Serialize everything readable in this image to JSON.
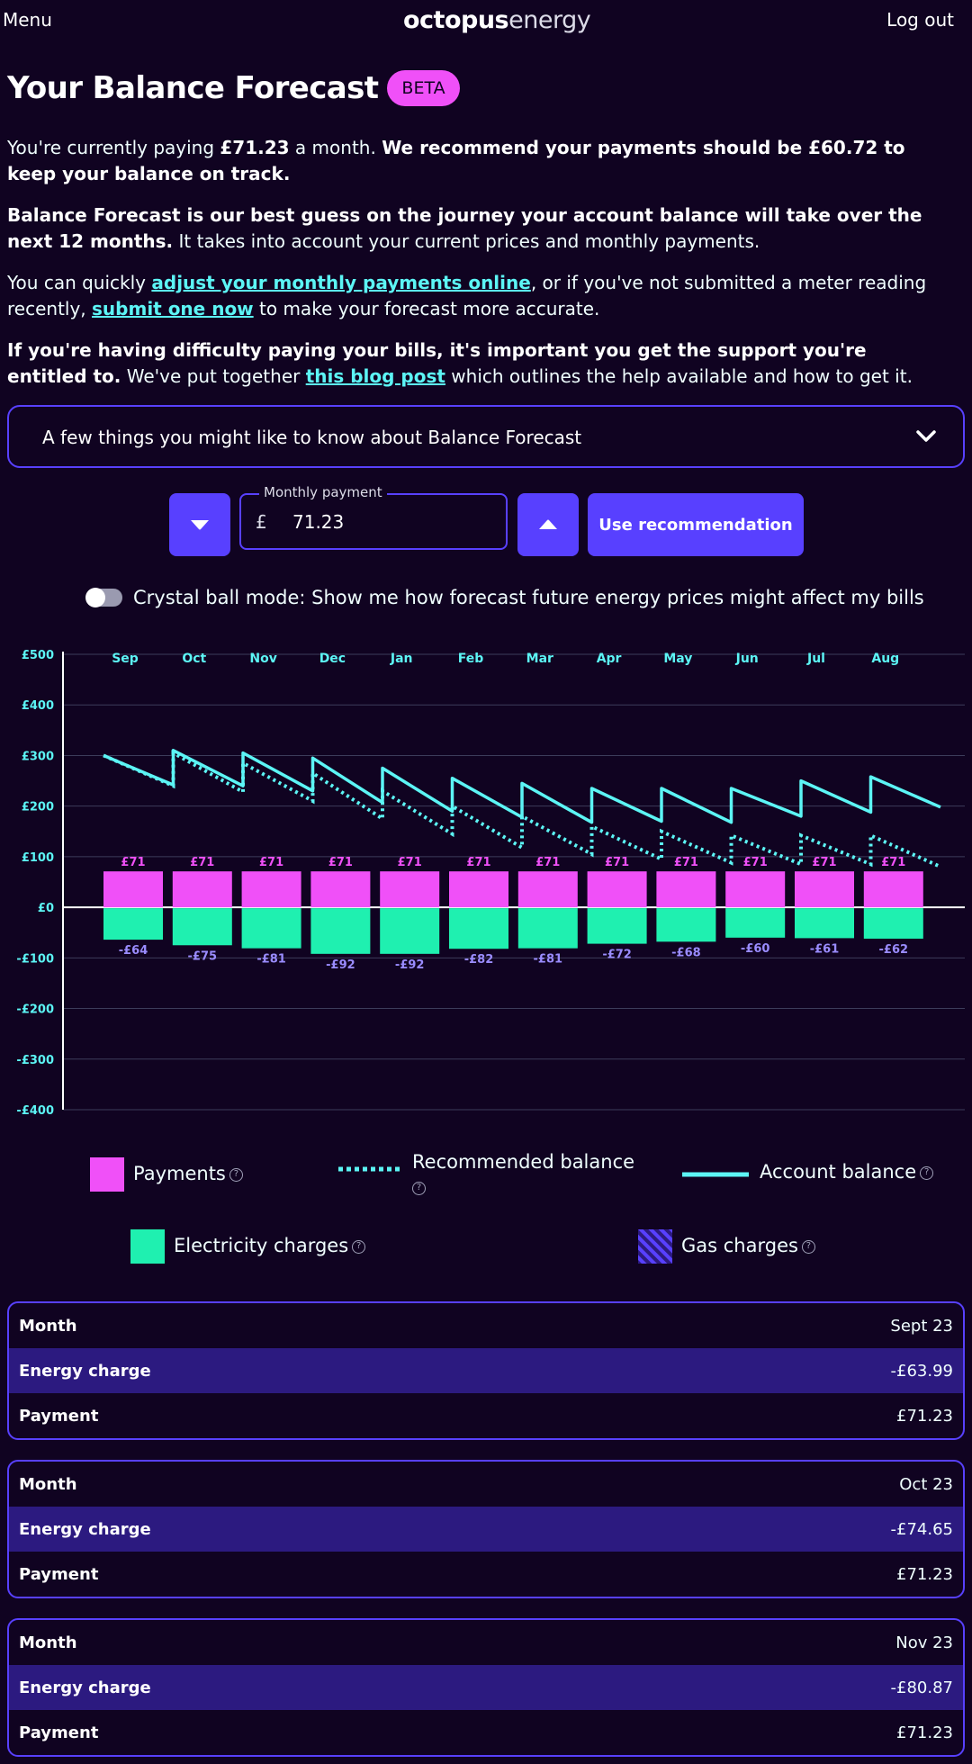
{
  "header": {
    "menu": "Menu",
    "logo_bold": "octopus",
    "logo_light": "energy",
    "logout": "Log out"
  },
  "title": "Your Balance Forecast",
  "badge": "BETA",
  "intro": {
    "p1_a": "You're currently paying ",
    "p1_amount": "£71.23",
    "p1_b": " a month. ",
    "p1_strong": "We recommend your payments should be £60.72 to keep your balance on track.",
    "p2_strong": "Balance Forecast is our best guess on the journey your account balance will take over the next 12 months.",
    "p2_rest": " It takes into account your current prices and monthly payments.",
    "p3_a": "You can quickly ",
    "p3_link1": "adjust your monthly payments online",
    "p3_b": ", or if you've not submitted a meter reading recently, ",
    "p3_link2": "submit one now",
    "p3_c": " to make your forecast more accurate.",
    "p4_strong": "If you're having difficulty paying your bills, it's important you get the support you're entitled to.",
    "p4_a": " We've put together ",
    "p4_link": "this blog post",
    "p4_b": " which outlines the help available and how to get it."
  },
  "accordion": {
    "title": "A few things you might like to know about Balance Forecast",
    "icon": "chevron-down-icon"
  },
  "payment": {
    "label": "Monthly payment",
    "currency": "£",
    "value": "71.23",
    "use_recommendation": "Use recommendation"
  },
  "crystal_ball": {
    "label": "Crystal ball mode: Show me how forecast future energy prices might affect my bills",
    "enabled": false
  },
  "colors": {
    "payments": "#f050f8",
    "electricity": "#1ff0b0",
    "gas": "#5840ff",
    "balance": "#5cf5f5",
    "background": "#100321"
  },
  "chart_data": {
    "type": "bar",
    "categories": [
      "Sep",
      "Oct",
      "Nov",
      "Dec",
      "Jan",
      "Feb",
      "Mar",
      "Apr",
      "May",
      "Jun",
      "Jul",
      "Aug"
    ],
    "ylim": [
      -400,
      500
    ],
    "yticks": [
      500,
      400,
      300,
      200,
      100,
      0,
      -100,
      -200,
      -300,
      -400
    ],
    "ytick_labels": [
      "£500",
      "£400",
      "£300",
      "£200",
      "£100",
      "£0",
      "-£100",
      "-£200",
      "-£300",
      "-£400"
    ],
    "series": [
      {
        "name": "Payments",
        "values": [
          71,
          71,
          71,
          71,
          71,
          71,
          71,
          71,
          71,
          71,
          71,
          71
        ],
        "labels": [
          "£71",
          "£71",
          "£71",
          "£71",
          "£71",
          "£71",
          "£71",
          "£71",
          "£71",
          "£71",
          "£71",
          "£71"
        ]
      },
      {
        "name": "Electricity charges",
        "values": [
          -64,
          -75,
          -81,
          -92,
          -92,
          -82,
          -81,
          -72,
          -68,
          -60,
          -61,
          -62
        ],
        "labels": [
          "-£64",
          "-£75",
          "-£81",
          "-£92",
          "-£92",
          "-£82",
          "-£81",
          "-£72",
          "-£68",
          "-£60",
          "-£61",
          "-£62"
        ]
      },
      {
        "name": "Recommended balance",
        "style": "dotted",
        "points": [
          [
            0,
            300
          ],
          [
            1,
            240
          ],
          [
            1,
            305
          ],
          [
            2,
            228
          ],
          [
            2,
            285
          ],
          [
            3,
            210
          ],
          [
            3,
            265
          ],
          [
            4,
            175
          ],
          [
            4,
            230
          ],
          [
            5,
            145
          ],
          [
            5,
            200
          ],
          [
            6,
            118
          ],
          [
            6,
            180
          ],
          [
            7,
            105
          ],
          [
            7,
            160
          ],
          [
            8,
            95
          ],
          [
            8,
            150
          ],
          [
            9,
            88
          ],
          [
            9,
            142
          ],
          [
            10,
            85
          ],
          [
            10,
            142
          ],
          [
            11,
            85
          ],
          [
            11,
            142
          ],
          [
            12,
            80
          ]
        ]
      },
      {
        "name": "Account balance",
        "style": "solid",
        "points": [
          [
            0,
            300
          ],
          [
            1,
            242
          ],
          [
            1,
            310
          ],
          [
            2,
            240
          ],
          [
            2,
            305
          ],
          [
            3,
            230
          ],
          [
            3,
            295
          ],
          [
            4,
            207
          ],
          [
            4,
            275
          ],
          [
            5,
            190
          ],
          [
            5,
            255
          ],
          [
            6,
            178
          ],
          [
            6,
            245
          ],
          [
            7,
            168
          ],
          [
            7,
            235
          ],
          [
            8,
            170
          ],
          [
            8,
            235
          ],
          [
            9,
            168
          ],
          [
            9,
            235
          ],
          [
            10,
            180
          ],
          [
            10,
            250
          ],
          [
            11,
            188
          ],
          [
            11,
            258
          ],
          [
            12,
            198
          ]
        ]
      }
    ],
    "legend": [
      {
        "name": "Payments",
        "help": "?"
      },
      {
        "name": "Recommended balance",
        "help": "?"
      },
      {
        "name": "Account balance",
        "help": "?"
      },
      {
        "name": "Electricity charges",
        "help": "?"
      },
      {
        "name": "Gas charges",
        "help": "?"
      }
    ]
  },
  "months": [
    {
      "month_label": "Month",
      "month": "Sept 23",
      "charge_label": "Energy charge",
      "charge": "-£63.99",
      "payment_label": "Payment",
      "payment": "£71.23"
    },
    {
      "month_label": "Month",
      "month": "Oct 23",
      "charge_label": "Energy charge",
      "charge": "-£74.65",
      "payment_label": "Payment",
      "payment": "£71.23"
    },
    {
      "month_label": "Month",
      "month": "Nov 23",
      "charge_label": "Energy charge",
      "charge": "-£80.87",
      "payment_label": "Payment",
      "payment": "£71.23"
    }
  ]
}
